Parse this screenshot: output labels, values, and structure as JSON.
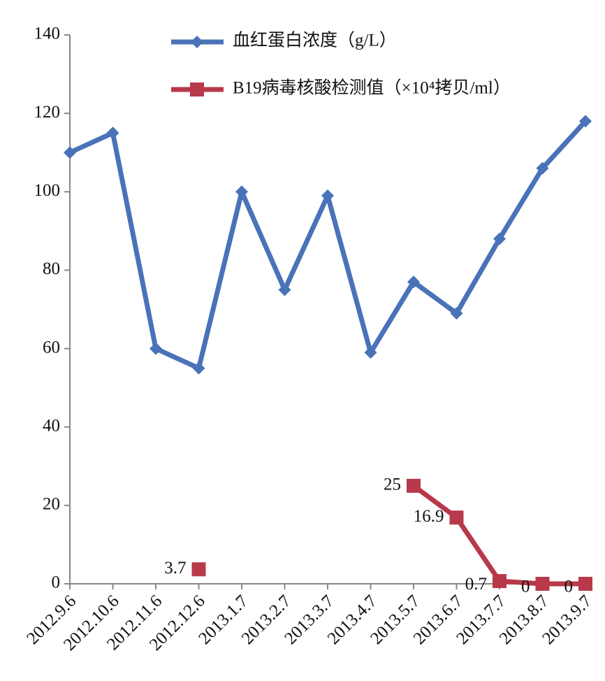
{
  "chart_data": {
    "type": "line",
    "categories": [
      "2012.9.6",
      "2012.10.6",
      "2012.11.6",
      "2012.12.6",
      "2013.1.7",
      "2013.2.7",
      "2013.3.7",
      "2013.4.7",
      "2013.5.7",
      "2013.6.7",
      "2013.7.7",
      "2013.8.7",
      "2013.9.7"
    ],
    "series": [
      {
        "name": "血红蛋白浓度（g/L）",
        "color": "#4a72b8",
        "marker": "diamond",
        "values": [
          110,
          115,
          60,
          55,
          100,
          75,
          99,
          59,
          77,
          69,
          88,
          106,
          118
        ]
      },
      {
        "name": "B19病毒核酸检测值（×10⁴拷贝/ml）",
        "color": "#b8394a",
        "marker": "square",
        "values": [
          null,
          null,
          null,
          3.7,
          null,
          null,
          null,
          null,
          25,
          16.9,
          0.7,
          0,
          0
        ]
      }
    ],
    "data_labels": {
      "series": 1
    },
    "ylim": [
      0,
      140
    ],
    "yticks": [
      0,
      20,
      40,
      60,
      80,
      100,
      120,
      140
    ],
    "legend": "top"
  }
}
